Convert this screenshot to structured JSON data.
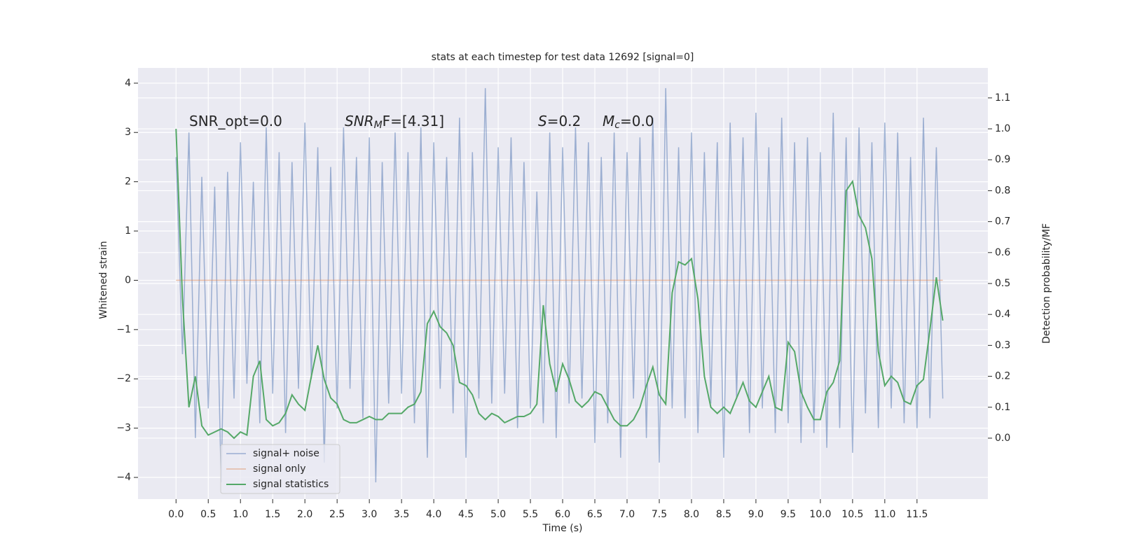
{
  "chart_data": {
    "type": "line",
    "title": "stats at each timestep for test data 12692 [signal=0]",
    "xlabel": "Time (s)",
    "ylabel": "Whitened strain",
    "y2label": "Detection probability/MF",
    "annotations": [
      {
        "base": "SNR_opt=0.0"
      },
      {
        "base": "SNR",
        "sub": "M",
        "rest": "F=[4.31]"
      },
      {
        "base": "S",
        "rest": "=0.2"
      },
      {
        "base": "M",
        "sub": "c",
        "rest": "=0.0"
      }
    ],
    "x": [
      0,
      0.1,
      0.2,
      0.3,
      0.4,
      0.5,
      0.6,
      0.7,
      0.8,
      0.9,
      1,
      1.1,
      1.2,
      1.3,
      1.4,
      1.5,
      1.6,
      1.7,
      1.8,
      1.9,
      2,
      2.1,
      2.2,
      2.3,
      2.4,
      2.5,
      2.6,
      2.7,
      2.8,
      2.9,
      3,
      3.1,
      3.2,
      3.3,
      3.4,
      3.5,
      3.6,
      3.7,
      3.8,
      3.9,
      4,
      4.1,
      4.2,
      4.3,
      4.4,
      4.5,
      4.6,
      4.7,
      4.8,
      4.9,
      5,
      5.1,
      5.2,
      5.3,
      5.4,
      5.5,
      5.6,
      5.7,
      5.8,
      5.9,
      6,
      6.1,
      6.2,
      6.3,
      6.4,
      6.5,
      6.6,
      6.7,
      6.8,
      6.9,
      7,
      7.1,
      7.2,
      7.3,
      7.4,
      7.5,
      7.6,
      7.7,
      7.8,
      7.9,
      8,
      8.1,
      8.2,
      8.3,
      8.4,
      8.5,
      8.6,
      8.7,
      8.8,
      8.9,
      9,
      9.1,
      9.2,
      9.3,
      9.4,
      9.5,
      9.6,
      9.7,
      9.8,
      9.9,
      10,
      10.1,
      10.2,
      10.3,
      10.4,
      10.5,
      10.6,
      10.7,
      10.8,
      10.9,
      11,
      11.1,
      11.2,
      11.3,
      11.4,
      11.5,
      11.6,
      11.7,
      11.8,
      11.9
    ],
    "series": [
      {
        "name": "signal+ noise",
        "color": "#4c72b0",
        "values": [
          2.5,
          -1.5,
          3.0,
          -3.2,
          2.1,
          -2.6,
          1.9,
          -4.1,
          2.2,
          -2.4,
          2.8,
          -2.1,
          2.0,
          -2.9,
          3.1,
          -2.3,
          2.6,
          -3.1,
          2.4,
          -2.2,
          3.2,
          -2.0,
          2.7,
          -3.7,
          2.3,
          -2.6,
          3.1,
          -2.2,
          2.5,
          -2.8,
          2.9,
          -4.1,
          2.4,
          -2.5,
          3.0,
          -2.3,
          2.6,
          -2.9,
          3.1,
          -3.6,
          2.8,
          -2.2,
          2.5,
          -2.7,
          3.3,
          -3.6,
          2.6,
          -2.4,
          3.9,
          -2.5,
          2.7,
          -2.3,
          2.9,
          -3.0,
          2.4,
          -2.6,
          1.8,
          -2.9,
          3.0,
          -3.2,
          2.7,
          -2.5,
          3.1,
          -2.4,
          2.8,
          -3.3,
          2.5,
          -2.9,
          3.0,
          -3.6,
          2.6,
          -2.4,
          2.9,
          -3.2,
          3.3,
          -3.7,
          3.9,
          -2.6,
          2.7,
          -2.8,
          3.0,
          -3.1,
          2.6,
          -2.5,
          2.8,
          -3.6,
          3.2,
          -2.4,
          2.9,
          -3.1,
          3.4,
          -2.6,
          2.7,
          -3.1,
          3.3,
          -2.9,
          2.8,
          -3.3,
          2.9,
          -3.1,
          2.6,
          -3.4,
          3.4,
          -3.0,
          2.9,
          -3.5,
          3.1,
          -2.7,
          2.8,
          -3.0,
          3.2,
          -2.6,
          3.0,
          -2.9,
          2.5,
          -3.0,
          3.3,
          -2.8,
          2.7,
          -2.4
        ]
      },
      {
        "name": "signal only",
        "color": "#dd8452",
        "x": [
          0,
          11.9
        ],
        "values": [
          0,
          0
        ]
      },
      {
        "name": "signal statistics",
        "color": "#55a868",
        "axis": "y2",
        "values": [
          1.0,
          0.45,
          0.1,
          0.2,
          0.04,
          0.01,
          0.02,
          0.03,
          0.02,
          0.0,
          0.02,
          0.01,
          0.2,
          0.25,
          0.06,
          0.04,
          0.05,
          0.08,
          0.14,
          0.11,
          0.09,
          0.2,
          0.3,
          0.19,
          0.13,
          0.11,
          0.06,
          0.05,
          0.05,
          0.06,
          0.07,
          0.06,
          0.06,
          0.08,
          0.08,
          0.08,
          0.1,
          0.11,
          0.15,
          0.37,
          0.41,
          0.36,
          0.34,
          0.3,
          0.18,
          0.17,
          0.14,
          0.08,
          0.06,
          0.08,
          0.07,
          0.05,
          0.06,
          0.07,
          0.07,
          0.08,
          0.11,
          0.43,
          0.24,
          0.15,
          0.24,
          0.19,
          0.12,
          0.1,
          0.12,
          0.15,
          0.14,
          0.1,
          0.06,
          0.04,
          0.04,
          0.06,
          0.1,
          0.17,
          0.23,
          0.14,
          0.11,
          0.47,
          0.57,
          0.56,
          0.58,
          0.45,
          0.2,
          0.1,
          0.08,
          0.1,
          0.08,
          0.13,
          0.18,
          0.12,
          0.1,
          0.15,
          0.2,
          0.1,
          0.09,
          0.31,
          0.28,
          0.15,
          0.1,
          0.06,
          0.06,
          0.15,
          0.18,
          0.25,
          0.8,
          0.83,
          0.72,
          0.68,
          0.58,
          0.28,
          0.17,
          0.2,
          0.18,
          0.12,
          0.11,
          0.17,
          0.19,
          0.35,
          0.52,
          0.38
        ]
      }
    ],
    "xlim": [
      -0.59,
      12.6
    ],
    "xticks": [
      {
        "value": 0,
        "label": "0.0"
      },
      0.5,
      {
        "value": 1,
        "label": "1.0"
      },
      1.5,
      {
        "value": 2,
        "label": "2.0"
      },
      2.5,
      {
        "value": 3,
        "label": "3.0"
      },
      3.5,
      {
        "value": 4,
        "label": "4.0"
      },
      4.5,
      {
        "value": 5,
        "label": "5.0"
      },
      5.5,
      {
        "value": 6,
        "label": "6.0"
      },
      6.5,
      {
        "value": 7,
        "label": "7.0"
      },
      7.5,
      {
        "value": 8,
        "label": "8.0"
      },
      8.5,
      {
        "value": 9,
        "label": "9.0"
      },
      9.5,
      {
        "value": 10,
        "label": "10.0"
      },
      10.5,
      {
        "value": 11,
        "label": "11.0"
      },
      11.5
    ],
    "ylim": [
      -4.44,
      4.31
    ],
    "yticks": [
      {
        "value": -4,
        "label": "−4"
      },
      {
        "value": -3,
        "label": "−3"
      },
      {
        "value": -2,
        "label": "−2"
      },
      {
        "value": -1,
        "label": "−1"
      },
      0,
      1,
      2,
      3,
      4
    ],
    "y2lim": [
      -0.197,
      1.197
    ],
    "y2ticks": [
      {
        "value": 0,
        "label": "0.0"
      },
      0.1,
      0.2,
      0.3,
      0.4,
      0.5,
      0.6,
      0.7,
      0.8,
      0.9,
      {
        "value": 1,
        "label": "1.0"
      },
      1.1
    ],
    "grid": true,
    "legend": "lower left"
  }
}
